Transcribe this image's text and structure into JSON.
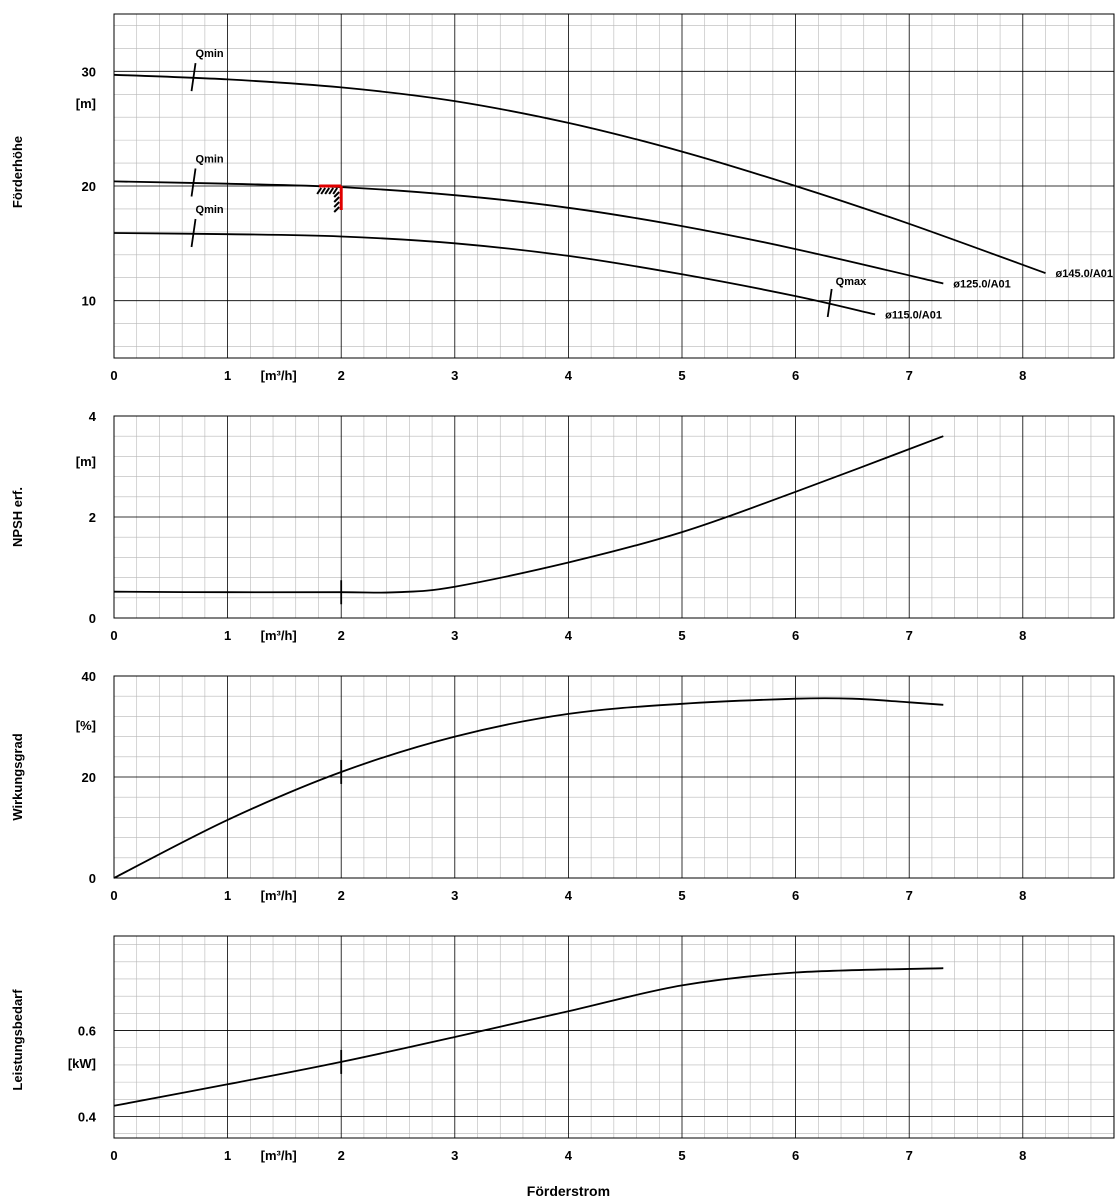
{
  "x_axis": {
    "label": "Förderstrom",
    "unit": "[m³/h]",
    "ticks": [
      "0",
      "1",
      "2",
      "3",
      "4",
      "5",
      "6",
      "7",
      "8"
    ]
  },
  "colors": {
    "operating_point": "#e00000",
    "curve": "#000000"
  },
  "chart_data": [
    {
      "type": "line",
      "ylabel": "Förderhöhe",
      "yunit": "[m]",
      "xlim": [
        0,
        8.8
      ],
      "ylim": [
        5,
        35
      ],
      "yticks": [
        10,
        20,
        30
      ],
      "series": [
        {
          "name": "ø145.0/A01",
          "x": [
            0,
            1,
            2,
            3,
            4,
            5,
            6,
            7,
            8.2
          ],
          "y": [
            29.7,
            29.3,
            28.6,
            27.4,
            25.5,
            23.0,
            20.0,
            16.7,
            12.4
          ]
        },
        {
          "name": "ø125.0/A01",
          "x": [
            0,
            1,
            2,
            3,
            4,
            5,
            6,
            7.3
          ],
          "y": [
            20.4,
            20.2,
            19.9,
            19.2,
            18.1,
            16.5,
            14.5,
            11.5
          ]
        },
        {
          "name": "ø115.0/A01",
          "x": [
            0,
            1,
            2,
            3,
            4,
            5,
            6,
            6.7
          ],
          "y": [
            15.9,
            15.8,
            15.6,
            15.0,
            13.9,
            12.3,
            10.4,
            8.8
          ]
        }
      ],
      "annotations": [
        {
          "text": "Qmin",
          "x": 0.7,
          "y": 29.5
        },
        {
          "text": "Qmin",
          "x": 0.7,
          "y": 20.3
        },
        {
          "text": "Qmin",
          "x": 0.7,
          "y": 15.9
        },
        {
          "text": "Qmax",
          "x": 6.3,
          "y": 9.8
        }
      ],
      "operating_point": {
        "x": 2,
        "y": 20
      }
    },
    {
      "type": "line",
      "ylabel": "NPSH erf.",
      "yunit": "[m]",
      "xlim": [
        0,
        8.8
      ],
      "ylim": [
        0,
        4
      ],
      "yticks": [
        0,
        2,
        4
      ],
      "series": [
        {
          "x": [
            0,
            1,
            2,
            2.5,
            3,
            4,
            5,
            6,
            7.3
          ],
          "y": [
            0.52,
            0.51,
            0.51,
            0.51,
            0.62,
            1.1,
            1.7,
            2.5,
            3.6
          ]
        }
      ],
      "operating_point": {
        "x": 2
      }
    },
    {
      "type": "line",
      "ylabel": "Wirkungsgrad",
      "yunit": "[%]",
      "xlim": [
        0,
        8.8
      ],
      "ylim": [
        0,
        40
      ],
      "yticks": [
        0,
        20,
        40
      ],
      "series": [
        {
          "x": [
            0,
            1,
            2,
            3,
            4,
            5,
            6,
            6.5,
            7,
            7.3
          ],
          "y": [
            0,
            11.5,
            21,
            28,
            32.5,
            34.5,
            35.5,
            35.5,
            34.8,
            34.3
          ]
        }
      ],
      "operating_point": {
        "x": 2
      }
    },
    {
      "type": "line",
      "ylabel": "Leistungsbedarf",
      "yunit": "[kW]",
      "xlim": [
        0,
        8.8
      ],
      "ylim": [
        0.35,
        0.82
      ],
      "yticks": [
        0.4,
        0.6
      ],
      "ytick_labels": [
        "0.4",
        "0.6"
      ],
      "series": [
        {
          "x": [
            0,
            1,
            2,
            3,
            4,
            5,
            6,
            7.3
          ],
          "y": [
            0.425,
            0.475,
            0.527,
            0.585,
            0.645,
            0.705,
            0.735,
            0.745
          ]
        }
      ],
      "operating_point": {
        "x": 2
      }
    }
  ]
}
